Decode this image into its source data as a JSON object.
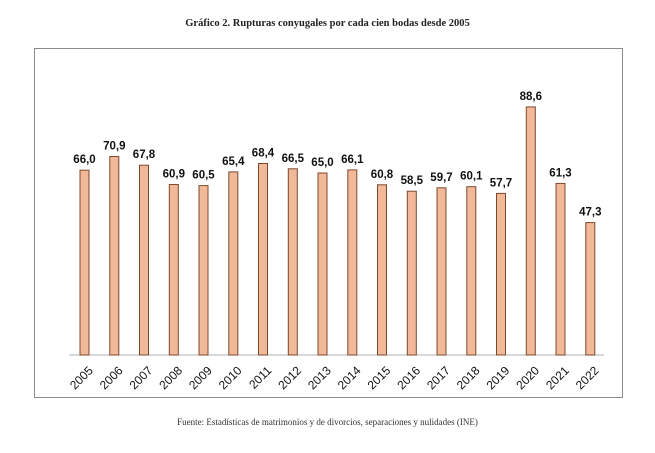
{
  "chart_data": {
    "type": "bar",
    "title": "Gráfico 2. Rupturas conyugales por cada cien bodas desde 2005",
    "xlabel": "",
    "ylabel": "",
    "ylim": [
      0,
      100
    ],
    "grid": false,
    "categories": [
      "2005",
      "2006",
      "2007",
      "2008",
      "2009",
      "2010",
      "2011",
      "2012",
      "2013",
      "2014",
      "2015",
      "2016",
      "2017",
      "2018",
      "2019",
      "2020",
      "2021",
      "2022"
    ],
    "values": [
      66.0,
      70.9,
      67.8,
      60.9,
      60.5,
      65.4,
      68.4,
      66.5,
      65.0,
      66.1,
      60.8,
      58.5,
      59.7,
      60.1,
      57.7,
      88.6,
      61.3,
      47.3
    ],
    "value_labels": [
      "66,0",
      "70,9",
      "67,8",
      "60,9",
      "60,5",
      "65,4",
      "68,4",
      "66,5",
      "65,0",
      "66,1",
      "60,8",
      "58,5",
      "59,7",
      "60,1",
      "57,7",
      "88,6",
      "61,3",
      "47,3"
    ],
    "bar_color": "#f2b998",
    "bar_edge_color": "#7a4a2e",
    "source": "Fuente: Estadísticas de matrimonios y de divorcios, separaciones y nulidades (INE)"
  }
}
